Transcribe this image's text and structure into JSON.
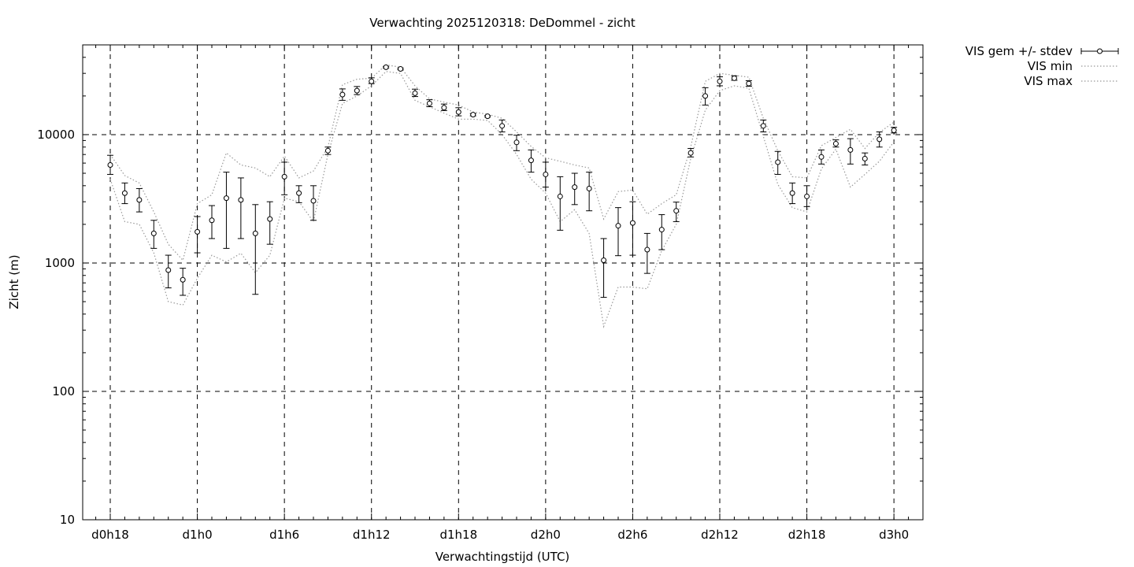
{
  "chart_data": {
    "type": "line",
    "title": "Verwachting 2025120318: DeDommel - zicht",
    "xlabel": "Verwachtingstijd (UTC)",
    "ylabel": "Zicht (m)",
    "y_scale": "log",
    "ylim": [
      10,
      50000
    ],
    "x_unit": "hours since forecast start (d0h18 = 0)",
    "xlim": [
      -1.9,
      56
    ],
    "x_ticks": [
      {
        "x": 0,
        "label": "d0h18"
      },
      {
        "x": 6,
        "label": "d1h0"
      },
      {
        "x": 12,
        "label": "d1h6"
      },
      {
        "x": 18,
        "label": "d1h12"
      },
      {
        "x": 24,
        "label": "d1h18"
      },
      {
        "x": 30,
        "label": "d2h0"
      },
      {
        "x": 36,
        "label": "d2h6"
      },
      {
        "x": 42,
        "label": "d2h12"
      },
      {
        "x": 48,
        "label": "d2h18"
      },
      {
        "x": 54,
        "label": "d3h0"
      }
    ],
    "y_ticks": [
      {
        "y": 10,
        "label": "10"
      },
      {
        "y": 100,
        "label": "100"
      },
      {
        "y": 1000,
        "label": "1000"
      },
      {
        "y": 10000,
        "label": "10000"
      }
    ],
    "grid": true,
    "legend_position": "outside-top-right",
    "x": [
      0,
      1,
      2,
      3,
      4,
      5,
      6,
      7,
      8,
      9,
      10,
      11,
      12,
      13,
      14,
      15,
      16,
      17,
      18,
      19,
      20,
      21,
      22,
      23,
      24,
      25,
      26,
      27,
      28,
      29,
      30,
      31,
      32,
      33,
      34,
      35,
      36,
      37,
      38,
      39,
      40,
      41,
      42,
      43,
      44,
      45,
      46,
      47,
      48,
      49,
      50,
      51,
      52,
      53,
      54
    ],
    "series": [
      {
        "name": "VIS gem +/- stdev",
        "style": "points-with-errorbars",
        "color": "#000000",
        "values": [
          5800,
          3500,
          3100,
          1700,
          880,
          740,
          1750,
          2150,
          3200,
          3100,
          1700,
          2200,
          4700,
          3500,
          3050,
          7500,
          20500,
          22000,
          26000,
          33500,
          32500,
          21000,
          17500,
          16200,
          15000,
          14300,
          13900,
          11700,
          8700,
          6300,
          4900,
          3300,
          3900,
          3800,
          1050,
          1950,
          2050,
          1270,
          1820,
          2550,
          7200,
          20000,
          26000,
          27500,
          25000,
          11700,
          6100,
          3500,
          3300,
          6700,
          8500,
          7600,
          6500,
          9200,
          10800
        ],
        "err_low": [
          4900,
          2900,
          2500,
          1300,
          640,
          560,
          1200,
          1550,
          1300,
          1550,
          570,
          1400,
          3400,
          2950,
          2150,
          7000,
          18500,
          20500,
          25000,
          33000,
          32000,
          19800,
          16500,
          15400,
          14000,
          14000,
          13700,
          10500,
          7500,
          5100,
          3900,
          1800,
          2850,
          2550,
          540,
          1140,
          1150,
          830,
          1270,
          2100,
          6700,
          17000,
          24000,
          26500,
          23800,
          10500,
          4900,
          2900,
          2750,
          5900,
          8000,
          5900,
          5800,
          8000,
          10300
        ],
        "err_high": [
          6900,
          4200,
          3800,
          2150,
          1150,
          910,
          2300,
          2800,
          5100,
          4600,
          2850,
          3000,
          6100,
          4000,
          4000,
          8000,
          22700,
          23700,
          27700,
          34000,
          33000,
          22600,
          18700,
          17300,
          16200,
          14600,
          14100,
          13000,
          9900,
          7600,
          6100,
          4700,
          5000,
          5100,
          1550,
          2700,
          3000,
          1700,
          2380,
          2980,
          7800,
          23200,
          28200,
          28700,
          26300,
          13000,
          7400,
          4200,
          4000,
          7600,
          9100,
          9300,
          7200,
          10500,
          11400
        ]
      },
      {
        "name": "VIS min",
        "style": "dotted-line",
        "color": "#999999",
        "values": [
          4500,
          2100,
          2000,
          1200,
          500,
          470,
          760,
          1150,
          1020,
          1190,
          840,
          1150,
          3200,
          3000,
          2100,
          7000,
          17500,
          20000,
          24000,
          31000,
          30000,
          18500,
          16500,
          14700,
          13200,
          13200,
          12900,
          10000,
          7000,
          4500,
          3500,
          2100,
          2600,
          1700,
          320,
          650,
          650,
          630,
          1250,
          2000,
          6500,
          15500,
          22000,
          24000,
          23000,
          9700,
          4100,
          2700,
          2500,
          5400,
          7700,
          3900,
          4900,
          6200,
          8800
        ]
      },
      {
        "name": "VIS max",
        "style": "dotted-line",
        "color": "#999999",
        "values": [
          7000,
          4800,
          4200,
          2500,
          1400,
          1050,
          2900,
          3400,
          7200,
          5800,
          5500,
          4700,
          6800,
          4600,
          5200,
          8000,
          24500,
          27000,
          27500,
          35000,
          33500,
          24000,
          19000,
          17900,
          17000,
          15000,
          14400,
          13400,
          10500,
          8100,
          6600,
          6200,
          5800,
          5500,
          2200,
          3600,
          3700,
          2400,
          2900,
          3400,
          8000,
          26000,
          30000,
          29000,
          28000,
          13400,
          7500,
          4700,
          4600,
          8200,
          9500,
          11000,
          7800,
          10400,
          12500
        ]
      }
    ]
  }
}
